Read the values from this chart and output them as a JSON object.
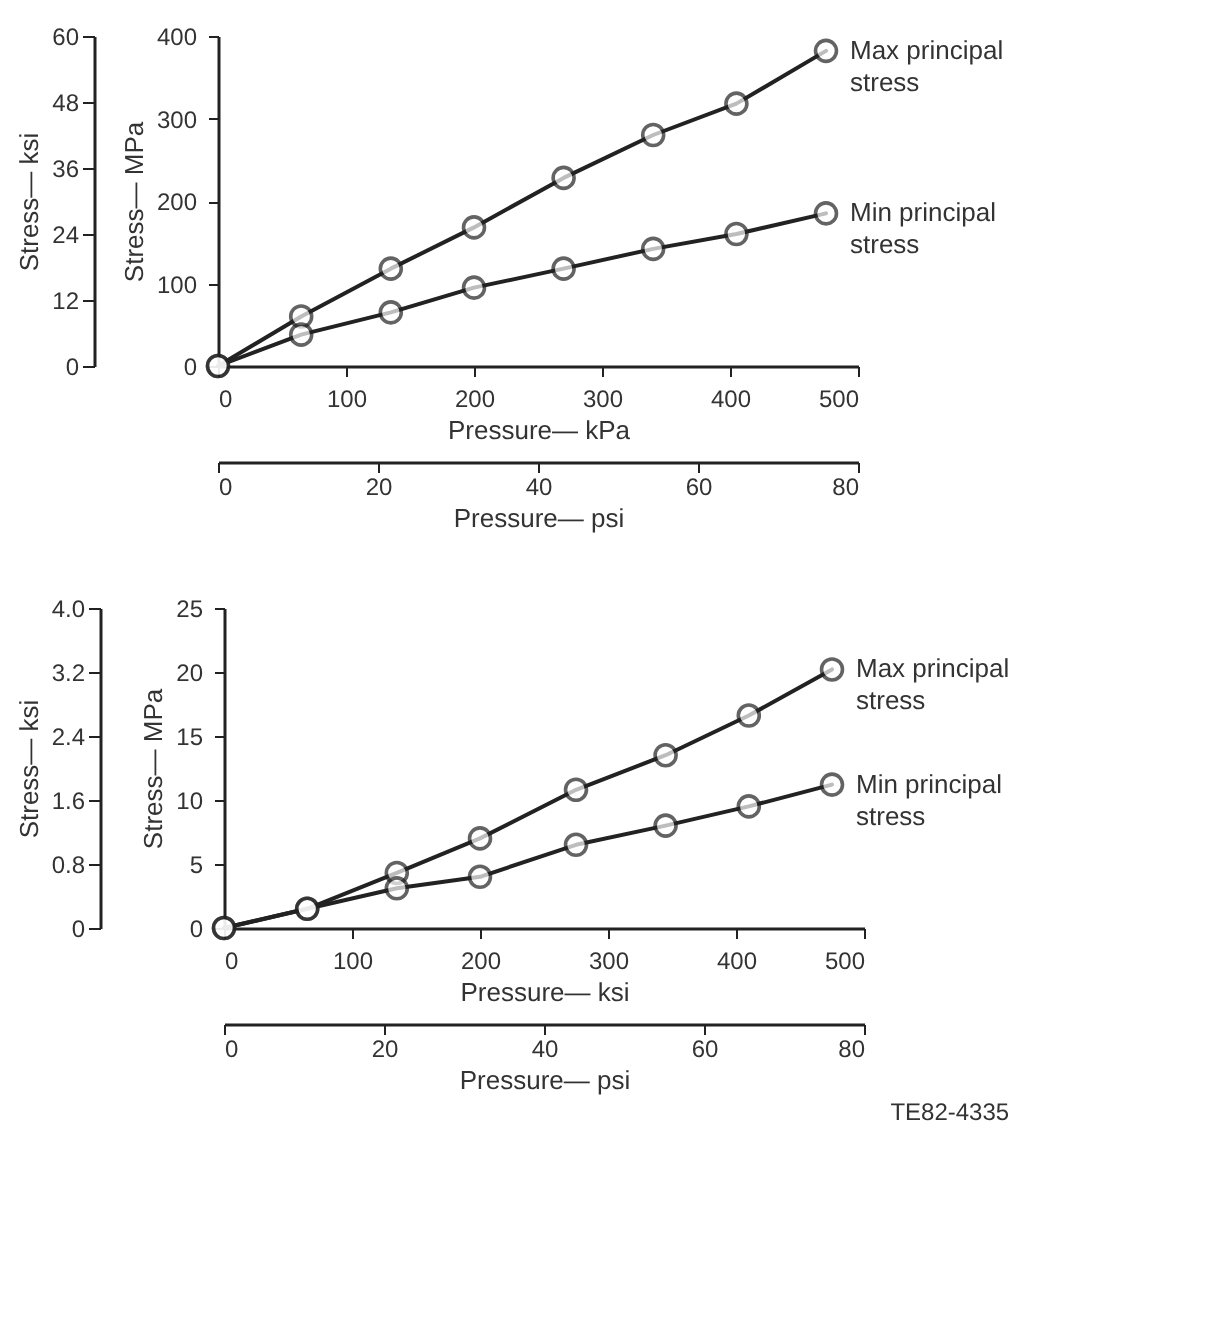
{
  "chart_data": [
    {
      "type": "line",
      "xlabel": "Pressure— kPa",
      "ylabel": "Stress— MPa",
      "y2label": "Stress— ksi",
      "x2label": "Pressure— psi",
      "x": [
        0,
        65,
        135,
        200,
        270,
        340,
        405,
        475
      ],
      "series": [
        {
          "name": "Max principal stress",
          "color": "#222222",
          "values": [
            0,
            60,
            118,
            168,
            228,
            280,
            318,
            382
          ]
        },
        {
          "name": "Min principal stress",
          "color": "#222222",
          "values": [
            0,
            38,
            65,
            95,
            118,
            142,
            160,
            185
          ]
        }
      ],
      "xlim": [
        0,
        500
      ],
      "xticks": [
        0,
        100,
        200,
        300,
        400,
        500
      ],
      "ylim": [
        0,
        400
      ],
      "yticks": [
        0,
        100,
        200,
        300,
        400
      ],
      "y2lim": [
        0,
        60
      ],
      "y2ticks": [
        0,
        12,
        24,
        36,
        48,
        60
      ],
      "x2lim": [
        0,
        80
      ],
      "x2ticks": [
        0,
        20,
        40,
        60,
        80
      ],
      "marker": "circle",
      "line_style": "solid",
      "grid": false
    },
    {
      "type": "line",
      "xlabel": "Pressure— ksi",
      "ylabel": "Stress— MPa",
      "y2label": "Stress— ksi",
      "x2label": "Pressure— psi",
      "x": [
        0,
        65,
        135,
        200,
        275,
        345,
        410,
        475
      ],
      "series": [
        {
          "name": "Max principal stress",
          "color": "#222222",
          "values": [
            0,
            1.5,
            4.3,
            7,
            10.8,
            13.5,
            16.6,
            20.2
          ]
        },
        {
          "name": "Min principal stress",
          "color": "#222222",
          "values": [
            0,
            1.5,
            3.1,
            4,
            6.5,
            8,
            9.5,
            11.2
          ]
        }
      ],
      "xlim": [
        0,
        500
      ],
      "xticks": [
        0,
        100,
        200,
        300,
        400,
        500
      ],
      "ylim": [
        0,
        25
      ],
      "yticks": [
        0,
        5,
        10,
        15,
        20,
        25
      ],
      "y2lim": [
        0,
        4
      ],
      "y2ticks": [
        0,
        0.8,
        1.6,
        2.4,
        3.2,
        {
          "value": 4,
          "label": "4.0"
        }
      ],
      "x2lim": [
        0,
        80
      ],
      "x2ticks": [
        0,
        20,
        40,
        60,
        80
      ],
      "marker": "circle",
      "line_style": "solid",
      "grid": false,
      "annotations": [
        "TE82-4335"
      ]
    }
  ]
}
